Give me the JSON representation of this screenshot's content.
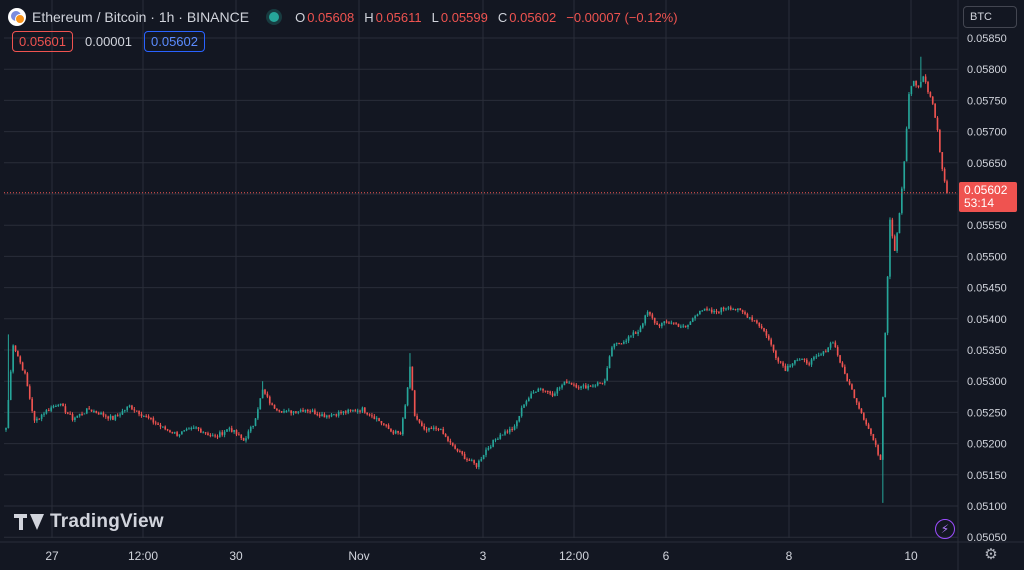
{
  "header": {
    "symbol_title": "Ethereum / Bitcoin · 1h · BINANCE",
    "ohlc": {
      "o_label": "O",
      "o": "0.05608",
      "h_label": "H",
      "h": "0.05611",
      "l_label": "L",
      "l": "0.05599",
      "c_label": "C",
      "c": "0.05602",
      "change": "−0.00007 (−0.12%)"
    },
    "bid": "0.05601",
    "spread": "0.00001",
    "ask": "0.05602"
  },
  "currency_button": "BTC",
  "last_price_tag": {
    "price": "0.05602",
    "countdown": "53:14"
  },
  "watermark": "TradingView",
  "colors": {
    "background": "#131722",
    "grid": "#2a2e39",
    "up": "#26a69a",
    "down": "#ef5350",
    "text": "#d1d4dc"
  },
  "chart_data": {
    "type": "candlestick",
    "ylim": [
      0.0503,
      0.0587
    ],
    "y_ticks": [
      "0.05850",
      "0.05800",
      "0.05750",
      "0.05700",
      "0.05650",
      "0.05600",
      "0.05550",
      "0.05500",
      "0.05450",
      "0.05400",
      "0.05350",
      "0.05300",
      "0.05250",
      "0.05200",
      "0.05150",
      "0.05100",
      "0.05050"
    ],
    "x_ticks": [
      "27",
      "12:00",
      "30",
      "Nov",
      "3",
      "12:00",
      "6",
      "8",
      "10"
    ],
    "last_price": 0.05602,
    "close_path": [
      {
        "i": 0,
        "p": 0.05225
      },
      {
        "i": 3,
        "p": 0.0536
      },
      {
        "i": 8,
        "p": 0.0531
      },
      {
        "i": 12,
        "p": 0.05235
      },
      {
        "i": 16,
        "p": 0.0525
      },
      {
        "i": 22,
        "p": 0.05265
      },
      {
        "i": 28,
        "p": 0.0524
      },
      {
        "i": 35,
        "p": 0.05255
      },
      {
        "i": 45,
        "p": 0.0524
      },
      {
        "i": 52,
        "p": 0.0526
      },
      {
        "i": 60,
        "p": 0.0524
      },
      {
        "i": 66,
        "p": 0.05225
      },
      {
        "i": 72,
        "p": 0.05215
      },
      {
        "i": 80,
        "p": 0.05225
      },
      {
        "i": 88,
        "p": 0.0521
      },
      {
        "i": 94,
        "p": 0.05225
      },
      {
        "i": 100,
        "p": 0.05205
      },
      {
        "i": 104,
        "p": 0.0523
      },
      {
        "i": 108,
        "p": 0.05285
      },
      {
        "i": 112,
        "p": 0.0526
      },
      {
        "i": 118,
        "p": 0.0525
      },
      {
        "i": 126,
        "p": 0.05255
      },
      {
        "i": 134,
        "p": 0.05245
      },
      {
        "i": 142,
        "p": 0.0525
      },
      {
        "i": 150,
        "p": 0.05255
      },
      {
        "i": 156,
        "p": 0.0524
      },
      {
        "i": 162,
        "p": 0.0522
      },
      {
        "i": 166,
        "p": 0.05215
      },
      {
        "i": 168,
        "p": 0.0526
      },
      {
        "i": 170,
        "p": 0.0532
      },
      {
        "i": 172,
        "p": 0.05245
      },
      {
        "i": 176,
        "p": 0.0522
      },
      {
        "i": 182,
        "p": 0.05225
      },
      {
        "i": 188,
        "p": 0.05195
      },
      {
        "i": 194,
        "p": 0.05175
      },
      {
        "i": 198,
        "p": 0.05165
      },
      {
        "i": 202,
        "p": 0.0519
      },
      {
        "i": 208,
        "p": 0.05215
      },
      {
        "i": 214,
        "p": 0.05225
      },
      {
        "i": 218,
        "p": 0.05265
      },
      {
        "i": 224,
        "p": 0.0529
      },
      {
        "i": 230,
        "p": 0.0528
      },
      {
        "i": 236,
        "p": 0.053
      },
      {
        "i": 242,
        "p": 0.0529
      },
      {
        "i": 248,
        "p": 0.05295
      },
      {
        "i": 252,
        "p": 0.053
      },
      {
        "i": 255,
        "p": 0.05355
      },
      {
        "i": 260,
        "p": 0.05365
      },
      {
        "i": 266,
        "p": 0.0538
      },
      {
        "i": 270,
        "p": 0.0541
      },
      {
        "i": 274,
        "p": 0.0539
      },
      {
        "i": 280,
        "p": 0.05395
      },
      {
        "i": 286,
        "p": 0.05385
      },
      {
        "i": 292,
        "p": 0.05415
      },
      {
        "i": 298,
        "p": 0.0541
      },
      {
        "i": 304,
        "p": 0.0542
      },
      {
        "i": 310,
        "p": 0.0541
      },
      {
        "i": 316,
        "p": 0.05395
      },
      {
        "i": 320,
        "p": 0.05375
      },
      {
        "i": 324,
        "p": 0.0534
      },
      {
        "i": 328,
        "p": 0.0532
      },
      {
        "i": 332,
        "p": 0.05335
      },
      {
        "i": 338,
        "p": 0.0533
      },
      {
        "i": 344,
        "p": 0.05345
      },
      {
        "i": 348,
        "p": 0.05365
      },
      {
        "i": 352,
        "p": 0.0532
      },
      {
        "i": 356,
        "p": 0.05285
      },
      {
        "i": 360,
        "p": 0.0525
      },
      {
        "i": 364,
        "p": 0.05215
      },
      {
        "i": 368,
        "p": 0.05175
      },
      {
        "i": 370,
        "p": 0.0538
      },
      {
        "i": 372,
        "p": 0.0556
      },
      {
        "i": 374,
        "p": 0.0551
      },
      {
        "i": 376,
        "p": 0.0557
      },
      {
        "i": 378,
        "p": 0.0565
      },
      {
        "i": 380,
        "p": 0.0576
      },
      {
        "i": 382,
        "p": 0.0578
      },
      {
        "i": 384,
        "p": 0.0577
      },
      {
        "i": 386,
        "p": 0.0579
      },
      {
        "i": 388,
        "p": 0.05765
      },
      {
        "i": 390,
        "p": 0.05745
      },
      {
        "i": 392,
        "p": 0.057
      },
      {
        "i": 394,
        "p": 0.0564
      },
      {
        "i": 396,
        "p": 0.05602
      }
    ],
    "spikes": [
      {
        "i": 1,
        "high": 0.05375
      },
      {
        "i": 108,
        "high": 0.053
      },
      {
        "i": 170,
        "high": 0.05345
      },
      {
        "i": 369,
        "low": 0.05105
      },
      {
        "i": 385,
        "high": 0.0582
      }
    ]
  }
}
